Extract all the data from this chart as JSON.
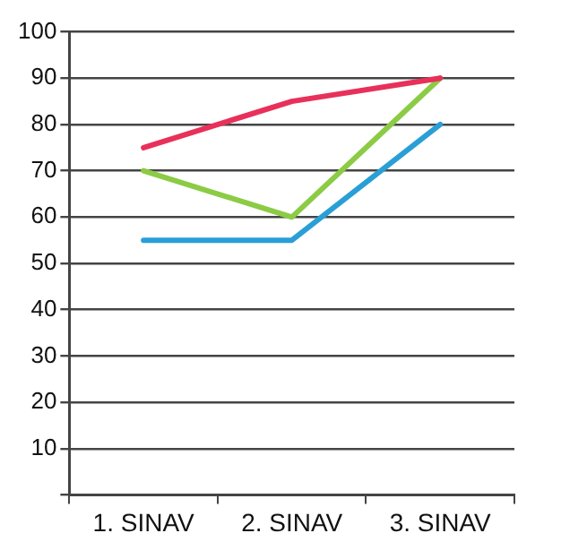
{
  "chart_data": {
    "type": "line",
    "categories": [
      "1. SINAV",
      "2. SINAV",
      "3. SINAV"
    ],
    "series": [
      {
        "color": "#e8305a",
        "values": [
          75,
          85,
          90
        ]
      },
      {
        "color": "#8ccb45",
        "values": [
          70,
          60,
          90
        ]
      },
      {
        "color": "#2a9fd6",
        "values": [
          55,
          55,
          80
        ]
      }
    ],
    "ylim": [
      0,
      100
    ],
    "yticks": [
      {
        "value": 0,
        "label": null
      },
      10,
      20,
      30,
      40,
      50,
      60,
      70,
      80,
      90,
      100
    ],
    "grid": "y",
    "legend": false,
    "marker": "none",
    "line_style": "solid"
  }
}
